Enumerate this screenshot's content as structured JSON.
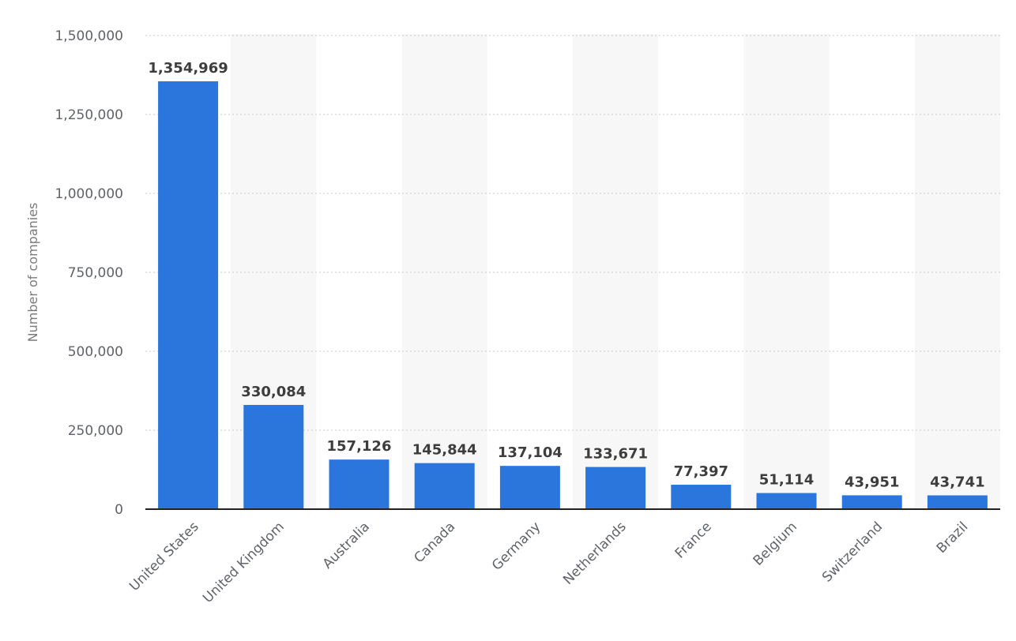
{
  "chart_data": {
    "type": "bar",
    "title": "",
    "xlabel": "",
    "ylabel": "Number of companies",
    "categories": [
      "United States",
      "United Kingdom",
      "Australia",
      "Canada",
      "Germany",
      "Netherlands",
      "France",
      "Belgium",
      "Switzerland",
      "Brazil"
    ],
    "values": [
      1354969,
      330084,
      157126,
      145844,
      137104,
      133671,
      77397,
      51114,
      43951,
      43741
    ],
    "data_labels": [
      "1,354,969",
      "330,084",
      "157,126",
      "145,844",
      "137,104",
      "133,671",
      "77,397",
      "51,114",
      "43,951",
      "43,741"
    ],
    "ylim": [
      0,
      1500000
    ],
    "yticks": [
      0,
      250000,
      500000,
      750000,
      1000000,
      1250000,
      1500000
    ],
    "ytick_labels": [
      "0",
      "250,000",
      "500,000",
      "750,000",
      "1,000,000",
      "1,250,000",
      "1,500,000"
    ],
    "grid": true,
    "legend": "none",
    "colors": {
      "bar": "#2a76dd",
      "band": "#f7f7f7",
      "axis": "#222222"
    }
  }
}
